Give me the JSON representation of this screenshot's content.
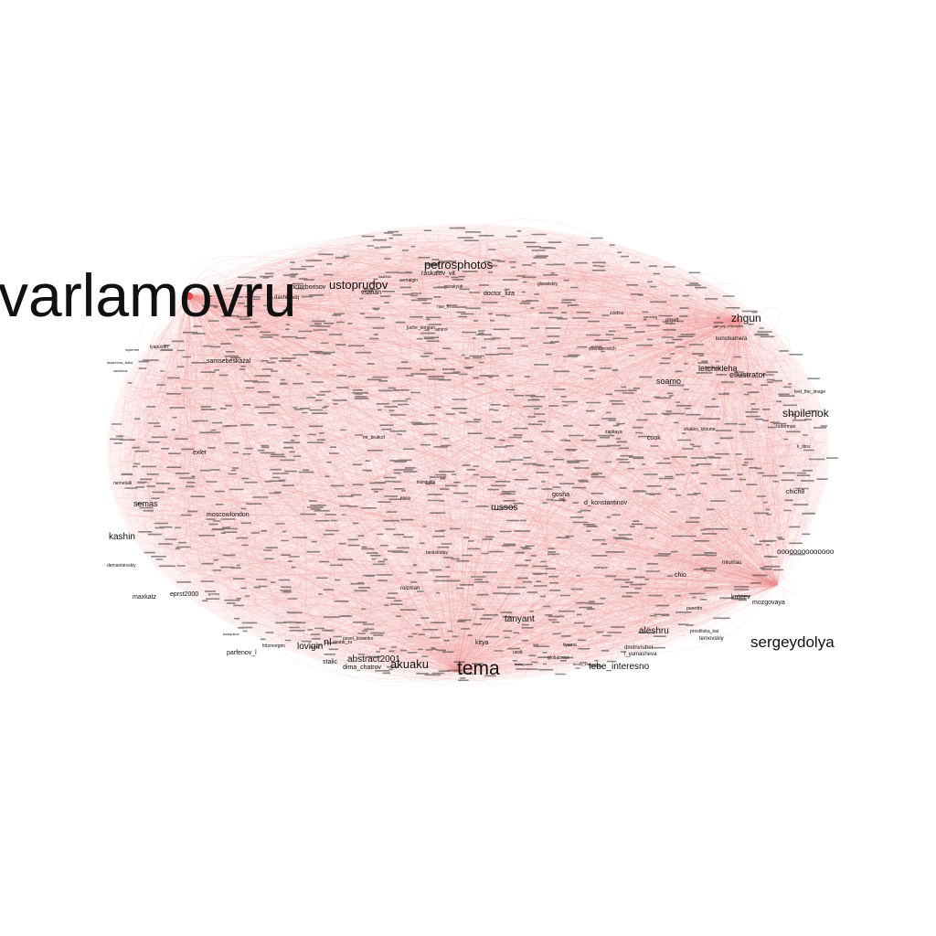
{
  "colors": {
    "edge": "#f08a8a",
    "hub": "#e04848",
    "label": "#111111",
    "background": "#ffffff"
  },
  "nodes": {
    "varlamovru": "varlamovru",
    "tema": "tema",
    "sergeydolya": "sergeydolya",
    "petrosphotos": "petrosphotos",
    "zhgun": "zhgun",
    "shpilenok": "shpilenok",
    "akuaku": "akuaku",
    "russos": "russos",
    "tanyant": "tanyant",
    "aleshru": "aleshru",
    "tebe_interesno": "tebe_interesno",
    "abstract2001": "abstract2001",
    "nl": "nl",
    "lovigin": "lovigin",
    "kashin": "kashin",
    "semas": "semas",
    "soamo": "soamo",
    "letchikleha": "letchikleha",
    "ellustrator": "ellustrator",
    "kunstkamera": "kunstkamera",
    "samsebeskazal": "samsebeskazal",
    "doctor_liza": "doctor_liza",
    "raskalov_vit": "raskalov_vit",
    "ustoprudov": "ustoprudov",
    "moscowlondon": "moscowlondon",
    "eprst2000": "eprst2000",
    "maxkatz": "maxkatz",
    "parfenov_l": "parfenov_l",
    "stalic": "stalic",
    "dima_chatrov": "dima_chatrov",
    "kitya": "kitya",
    "kuteev": "kuteev",
    "mozgovaya": "mozgovaya",
    "chich8": "chich8",
    "o000": "oooooooooooooo",
    "d_konstantinov": "d_konstantinov",
    "gosha": "gosha",
    "exler": "exler",
    "olgatt": "olgatt",
    "chio": "chio",
    "miumau": "miumau",
    "puerrtto": "puerrtto",
    "temovskiy": "temovskiy",
    "prostituka_kat": "prostituka_kat",
    "dmitrivrubel": "dmitrivrubel",
    "l_yumasheva": "l_yumasheva",
    "cook": "cook",
    "rolzman": "rolzman",
    "vsafian": "vsafian",
    "lyapustin": "lyapustin",
    "nemetalk": "nemetalk",
    "demantievskiy": "demantievskiy",
    "glavatskiy": "glavatskiy",
    "shenderovich": "shenderovich",
    "sergey_mikheyev": "sergey_mikheyev",
    "k_titov": "k_titov",
    "ruderman": "ruderman",
    "avmalgin": "avmalgin",
    "avatar_ru": "avatar_ru",
    "pavel_kosenko": "pavel_kosenko",
    "zzebra": "zzebra",
    "feel_the_image": "feel_the_image",
    "fritzmorgen": "fritzmorgen",
    "ilyarna": "ilyarna",
    "globalmice": "globalmice",
    "usolt": "usolt",
    "babaysasin": "babaysasin",
    "tranquilla": "tranquilla",
    "ttikkk": "ttikkk",
    "oleg_makarenko": "oleg_makarenko",
    "ahmed": "ahmed",
    "nav_in": "nav_in",
    "victorborisov": "victorborisov",
    "dashkeviq": "dashkeviq",
    "shakko_kitsune": "shakko_kitsune",
    "zapitaya": "zapitaya",
    "lazarevna": "lazarevna_talka",
    "radulova": "radulova",
    "loytemer": "loytemer",
    "mjl": "mjl",
    "samoleg": "samoleg",
    "dr_ondfing": "dr_ondfing",
    "maxim_kats": "maxim_kats",
    "kostyukov": "kostyukov",
    "gorney": "gorney",
    "sbodrov": "sbodrov",
    "bestsloday": "bestsloday",
    "jaskorevel": "jaskorevel",
    "juche_songun": "juche_songun",
    "amirol": "amirol",
    "pbabr": "pbabr",
    "patelin": "patelin",
    "gurakyuk": "gurakyuk",
    "vsaga": "vsaga",
    "zlata": "zlata",
    "nina": "nina",
    "balonka": "balonka",
    "markpon": "markpon",
    "odnoha": "odnoha",
    "mrbrutkof": "mr_brutkof",
    "vsyrlan": "yuryan",
    "kashhin": "kashhin",
    "becky": "becky_kris",
    "aneo": "aneo",
    "fotoculon": "fotoculon",
    "dolboeb": "dolboeb",
    "belonika": "belonika"
  }
}
